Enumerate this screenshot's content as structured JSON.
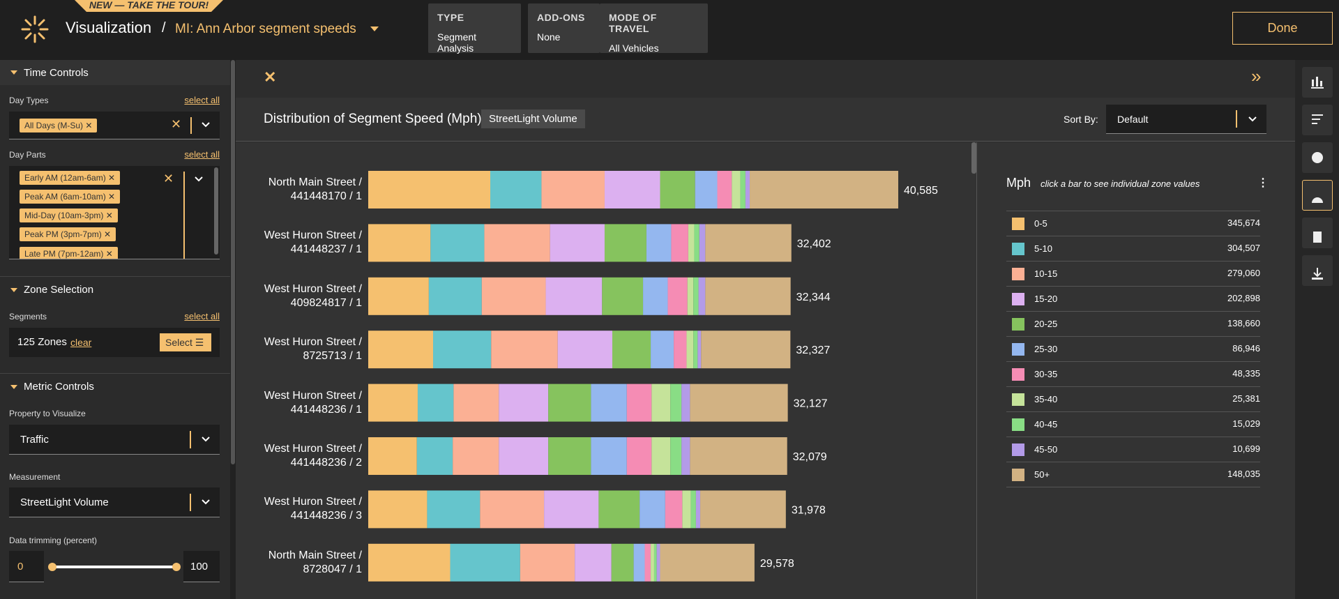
{
  "header": {
    "banner": "NEW — TAKE THE TOUR!",
    "title": "Visualization",
    "separator": "/",
    "project": "MI: Ann Arbor segment speeds",
    "done": "Done"
  },
  "settings": [
    {
      "label": "TYPE",
      "value": "Segment Analysis"
    },
    {
      "label": "ADD-ONS",
      "value": "None"
    },
    {
      "label": "MODE OF TRAVEL",
      "value": "All Vehicles"
    }
  ],
  "sidebar": {
    "time_controls": {
      "title": "Time Controls",
      "day_types_label": "Day Types",
      "select_all": "select all",
      "day_types": [
        "All Days (M-Su)"
      ],
      "day_parts_label": "Day Parts",
      "day_parts": [
        "Early AM (12am-6am)",
        "Peak AM (6am-10am)",
        "Mid-Day (10am-3pm)",
        "Peak PM (3pm-7pm)",
        "Late PM (7pm-12am)"
      ]
    },
    "zone_selection": {
      "title": "Zone Selection",
      "segments_label": "Segments",
      "select_all": "select all",
      "zones": "125 Zones",
      "clear": "clear",
      "select": "Select"
    },
    "metric_controls": {
      "title": "Metric Controls",
      "property_label": "Property to Visualize",
      "property": "Traffic",
      "measurement_label": "Measurement",
      "measurement": "StreetLight Volume",
      "trimming_label": "Data trimming (percent)",
      "trim_min": 0,
      "trim_max": 100
    }
  },
  "chart_data": {
    "type": "stacked_bar",
    "orientation": "horizontal",
    "title": "Distribution of Segment Speed (Mph)",
    "badge": "StreetLight Volume",
    "sort_label": "Sort By:",
    "sort_value": "Default",
    "legend_title": "Mph",
    "legend_hint": "click a bar to see individual zone values",
    "categories": [
      "North Main Street /\n441448170 / 1",
      "West Huron Street /\n441448237 / 1",
      "West Huron Street /\n409824817 / 1",
      "West Huron Street /\n8725713 / 1",
      "West Huron Street /\n441448236 / 1",
      "West Huron Street /\n441448236 / 2",
      "West Huron Street /\n441448236 / 3",
      "North Main Street /\n8728047 / 1"
    ],
    "totals": [
      40585,
      32402,
      32344,
      32327,
      32127,
      32079,
      31978,
      29578
    ],
    "total_labels": [
      "40,585",
      "32,402",
      "32,344",
      "32,327",
      "32,127",
      "32,079",
      "31,978",
      "29,578"
    ],
    "series": [
      {
        "name": "0-5",
        "color": "#f5c06f",
        "values": [
          9345,
          4771,
          4640,
          4967,
          3790,
          3725,
          4509,
          6274
        ],
        "total": 345674,
        "total_label": "345,674"
      },
      {
        "name": "5-10",
        "color": "#65c5cc",
        "values": [
          3921,
          4117,
          4052,
          4444,
          2745,
          2745,
          4052,
          5359
        ],
        "total": 304507,
        "total_label": "304,507"
      },
      {
        "name": "10-15",
        "color": "#fbb094",
        "values": [
          4836,
          5032,
          4901,
          5097,
          3464,
          3529,
          4901,
          4182
        ],
        "total": 279060,
        "total_label": "279,060"
      },
      {
        "name": "15-20",
        "color": "#dcb0f0",
        "values": [
          4248,
          4182,
          4313,
          4182,
          3790,
          3790,
          4182,
          2810
        ],
        "total": 202898,
        "total_label": "202,898"
      },
      {
        "name": "20-25",
        "color": "#86c35e",
        "values": [
          2679,
          3202,
          3137,
          2941,
          3268,
          3268,
          3137,
          1699
        ],
        "total": 138660,
        "total_label": "138,660"
      },
      {
        "name": "25-30",
        "color": "#94b7ef",
        "values": [
          1699,
          1895,
          1895,
          1764,
          2745,
          2745,
          1961,
          850
        ],
        "total": 86946,
        "total_label": "86,946"
      },
      {
        "name": "30-35",
        "color": "#f58cb4",
        "values": [
          1111,
          1307,
          1503,
          980,
          1895,
          1895,
          1307,
          457
        ],
        "total": 48335,
        "total_label": "48,335"
      },
      {
        "name": "35-40",
        "color": "#c5e39a",
        "values": [
          654,
          457,
          457,
          523,
          1438,
          1438,
          654,
          261
        ],
        "total": 25381,
        "total_label": "25,381"
      },
      {
        "name": "40-45",
        "color": "#89dd85",
        "values": [
          392,
          392,
          392,
          327,
          850,
          850,
          392,
          196
        ],
        "total": 15029,
        "total_label": "15,029"
      },
      {
        "name": "45-50",
        "color": "#b39be8",
        "values": [
          327,
          457,
          523,
          261,
          654,
          654,
          327,
          261
        ],
        "total": 10699,
        "total_label": "10,699"
      },
      {
        "name": "50+",
        "color": "#d2b283",
        "values": [
          11373,
          6590,
          6531,
          6841,
          7488,
          7440,
          6556,
          7229
        ],
        "total": 148035,
        "total_label": "148,035"
      }
    ]
  }
}
